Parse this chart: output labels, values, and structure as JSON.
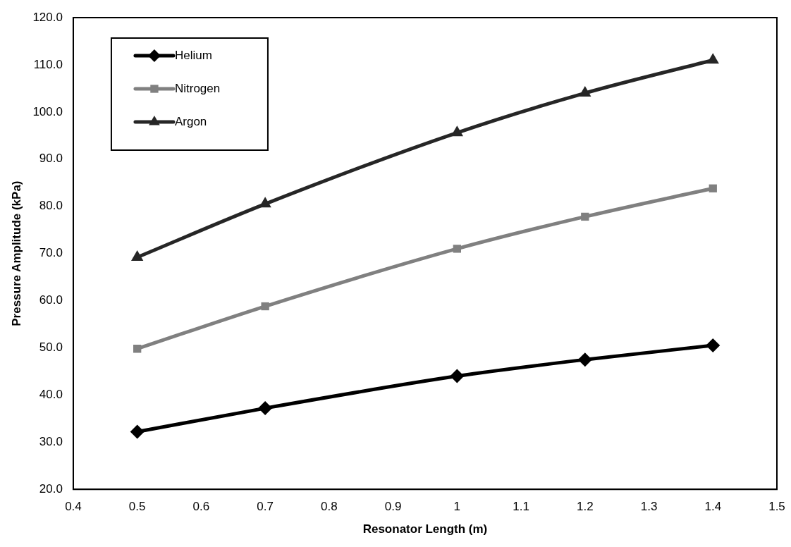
{
  "chart_data": {
    "type": "line",
    "xlabel": "Resonator Length (m)",
    "ylabel": "Pressure Amplitude (kPa)",
    "x": [
      0.5,
      0.7,
      1,
      1.2,
      1.4
    ],
    "series": [
      {
        "name": "Helium",
        "color": "#000000",
        "marker": "diamond",
        "values": [
          32.2,
          37.2,
          44.0,
          47.5,
          50.5
        ]
      },
      {
        "name": "Nitrogen",
        "color": "#808080",
        "marker": "square",
        "values": [
          49.8,
          58.8,
          71.0,
          77.8,
          83.8
        ]
      },
      {
        "name": "Argon",
        "color": "#262626",
        "marker": "triangle",
        "values": [
          69.2,
          80.5,
          95.6,
          104.0,
          111.0
        ]
      }
    ],
    "xlim": [
      0.4,
      1.5
    ],
    "xticks": [
      0.4,
      0.5,
      0.6,
      0.7,
      0.8,
      0.9,
      1,
      1.1,
      1.2,
      1.3,
      1.4,
      1.5
    ],
    "ylim": [
      20,
      120
    ],
    "yticks": [
      {
        "value": 20,
        "label": "20.0"
      },
      {
        "value": 30,
        "label": "30.0"
      },
      {
        "value": 40,
        "label": "40.0"
      },
      {
        "value": 50,
        "label": "50.0"
      },
      {
        "value": 60,
        "label": "60.0"
      },
      {
        "value": 70,
        "label": "70.0"
      },
      {
        "value": 80,
        "label": "80.0"
      },
      {
        "value": 90,
        "label": "90.0"
      },
      {
        "value": 100,
        "label": "100.0"
      },
      {
        "value": 110,
        "label": "110.0"
      },
      {
        "value": 120,
        "label": "120.0"
      }
    ],
    "grid": false,
    "legend": "top left",
    "line_style": "solid"
  }
}
